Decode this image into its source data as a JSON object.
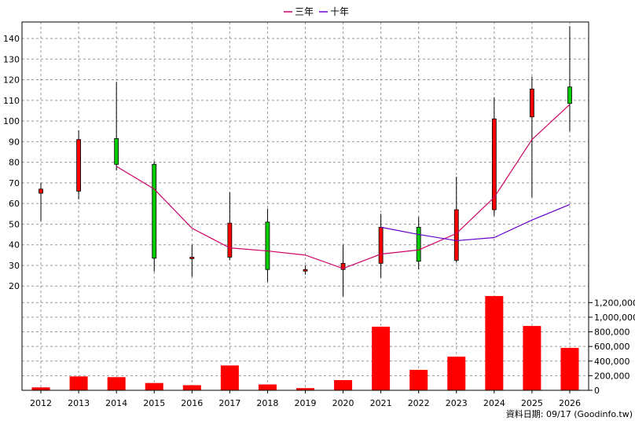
{
  "chart_data": {
    "type": "candlestick",
    "years": [
      "2012",
      "2013",
      "2014",
      "2015",
      "2016",
      "2017",
      "2018",
      "2019",
      "2020",
      "2021",
      "2022",
      "2023",
      "2024",
      "2025",
      "2026"
    ],
    "price_axis": {
      "ylim": [
        14,
        148
      ],
      "ticks": [
        20,
        30,
        40,
        50,
        60,
        70,
        80,
        90,
        100,
        110,
        120,
        130,
        140
      ]
    },
    "candles": [
      {
        "year": "2012",
        "open": 65.0,
        "close": 67.0,
        "high": 70.0,
        "low": 51.5
      },
      {
        "year": "2013",
        "open": 66.0,
        "close": 91.0,
        "high": 95.5,
        "low": 62.0
      },
      {
        "year": "2014",
        "open": 91.5,
        "close": 79.0,
        "high": 119.0,
        "low": 76.0
      },
      {
        "year": "2015",
        "open": 79.0,
        "close": 33.5,
        "high": 80.5,
        "low": 27.0
      },
      {
        "year": "2016",
        "open": 33.5,
        "close": 34.0,
        "high": 40.0,
        "low": 24.5
      },
      {
        "year": "2017",
        "open": 34.0,
        "close": 50.5,
        "high": 65.5,
        "low": 32.5
      },
      {
        "year": "2018",
        "open": 51.0,
        "close": 28.0,
        "high": 57.5,
        "low": 22.0
      },
      {
        "year": "2019",
        "open": 28.0,
        "close": 28.0,
        "high": 30.0,
        "low": 25.5
      },
      {
        "year": "2020",
        "open": 28.0,
        "close": 31.0,
        "high": 40.0,
        "low": 15.0
      },
      {
        "year": "2021",
        "open": 31.0,
        "close": 48.5,
        "high": 55.0,
        "low": 24.0
      },
      {
        "year": "2022",
        "open": 48.5,
        "close": 32.0,
        "high": 53.5,
        "low": 28.0
      },
      {
        "year": "2023",
        "open": 32.5,
        "close": 57.0,
        "high": 73.0,
        "low": 31.5
      },
      {
        "year": "2024",
        "open": 57.0,
        "close": 101.0,
        "high": 111.5,
        "low": 54.0
      },
      {
        "year": "2025",
        "open": 102.0,
        "close": 115.5,
        "high": 121.5,
        "low": 63.0
      },
      {
        "year": "2026",
        "open": 116.5,
        "close": 108.5,
        "high": 146.0,
        "low": 95.0
      }
    ],
    "series": [
      {
        "name": "三年",
        "color": "#cc0066",
        "x": [
          "2014",
          "2015",
          "2016",
          "2017",
          "2018",
          "2019",
          "2020",
          "2021",
          "2022",
          "2023",
          "2024",
          "2025",
          "2026"
        ],
        "values": [
          78,
          67,
          48,
          38.5,
          37,
          35,
          28.5,
          35.5,
          37.5,
          45.5,
          63,
          91,
          108
        ]
      },
      {
        "name": "十年",
        "color": "#6600cc",
        "x": [
          "2021",
          "2022",
          "2023",
          "2024",
          "2025",
          "2026"
        ],
        "values": [
          48.5,
          45,
          42,
          43.5,
          52,
          59.5
        ]
      }
    ],
    "volume": {
      "ylim": [
        0,
        1300000
      ],
      "ticks": [
        0,
        200000,
        400000,
        600000,
        800000,
        1000000,
        1200000
      ],
      "tick_labels": [
        "0",
        "200,000",
        "400,000",
        "600,000",
        "800,000",
        "1,000,000",
        "1,200,000"
      ],
      "values": [
        40000,
        190000,
        180000,
        100000,
        70000,
        340000,
        80000,
        30000,
        140000,
        870000,
        280000,
        460000,
        1290000,
        880000,
        580000
      ]
    },
    "colors": {
      "up": "#ff0000",
      "down": "#00cc00",
      "volume": "#ff0000",
      "grid": "#999999"
    },
    "legend": {
      "placement": "top-center"
    },
    "source_label": "資料日期: 09/17  (Goodinfo.tw)"
  }
}
